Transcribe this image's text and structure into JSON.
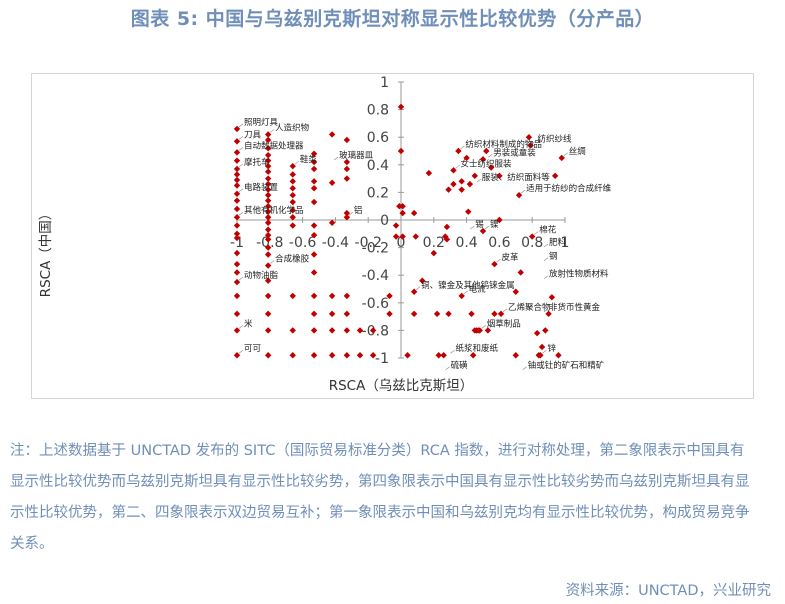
{
  "title": "图表 5:    中国与乌兹别克斯坦对称显示性比较优势（分产品）",
  "note": "注：上述数据基于 UNCTAD 发布的 SITC（国际贸易标准分类）RCA 指数，进行对称处理，第二象限表示中国具有显示性比较优势而乌兹别克斯坦具有显示性比较劣势，第四象限表示中国具有显示性比较劣势而乌兹别克斯坦具有显示性比较优势，第二、四象限表示双边贸易互补；第一象限表示中国和乌兹别克均有显示性比较优势，构成贸易竞争关系。",
  "source": "资料来源：UNCTAD，兴业研究",
  "chart_data": {
    "type": "scatter",
    "xlabel": "RSCA（乌兹比克斯坦）",
    "ylabel": "RSCA（中国）",
    "xlim": [
      -1,
      1
    ],
    "ylim": [
      -1,
      1
    ],
    "grid": false,
    "marker_color": "#c00000",
    "x_ticks": [
      "-1",
      "-0.8",
      "-0.6",
      "-0.4",
      "-0.2",
      "0",
      "0.2",
      "0.4",
      "0.6",
      "0.8",
      "1"
    ],
    "y_ticks": [
      "1",
      "0.8",
      "0.6",
      "0.4",
      "0.2",
      "0",
      "-0.2",
      "-0.4",
      "-0.6",
      "-0.8",
      "-1"
    ],
    "points": [
      [
        -1,
        0.66
      ],
      [
        -1,
        0.57
      ],
      [
        -1,
        0.49
      ],
      [
        -1,
        0.43
      ],
      [
        -1,
        0.37
      ],
      [
        -1,
        0.33
      ],
      [
        -1,
        0.29
      ],
      [
        -1,
        0.25
      ],
      [
        -1,
        0.19
      ],
      [
        -1,
        0.14
      ],
      [
        -1,
        0.08
      ],
      [
        -1,
        0.02
      ],
      [
        -1,
        -0.04
      ],
      [
        -1,
        -0.1
      ],
      [
        -1,
        -0.13
      ],
      [
        -1,
        -0.24
      ],
      [
        -1,
        -0.32
      ],
      [
        -1,
        -0.38
      ],
      [
        -1,
        -0.45
      ],
      [
        -1,
        -0.55
      ],
      [
        -1,
        -0.68
      ],
      [
        -1,
        -0.8
      ],
      [
        -1,
        -0.98
      ],
      [
        -0.81,
        0.62
      ],
      [
        -0.81,
        0.58
      ],
      [
        -0.81,
        0.52
      ],
      [
        -0.81,
        0.47
      ],
      [
        -0.81,
        0.43
      ],
      [
        -0.81,
        0.39
      ],
      [
        -0.81,
        0.35
      ],
      [
        -0.81,
        0.3
      ],
      [
        -0.81,
        0.26
      ],
      [
        -0.81,
        0.22
      ],
      [
        -0.81,
        0.18
      ],
      [
        -0.81,
        0.14
      ],
      [
        -0.81,
        0.1
      ],
      [
        -0.81,
        0.06
      ],
      [
        -0.81,
        0.02
      ],
      [
        -0.81,
        -0.02
      ],
      [
        -0.81,
        -0.07
      ],
      [
        -0.81,
        -0.11
      ],
      [
        -0.81,
        -0.14
      ],
      [
        -0.81,
        -0.2
      ],
      [
        -0.81,
        -0.25
      ],
      [
        -0.81,
        -0.33
      ],
      [
        -0.81,
        -0.44
      ],
      [
        -0.81,
        -0.55
      ],
      [
        -0.81,
        -0.68
      ],
      [
        -0.81,
        -0.8
      ],
      [
        -0.81,
        -0.98
      ],
      [
        -0.66,
        0.39
      ],
      [
        -0.66,
        0.33
      ],
      [
        -0.66,
        0.28
      ],
      [
        -0.66,
        0.23
      ],
      [
        -0.66,
        0.18
      ],
      [
        -0.66,
        0.13
      ],
      [
        -0.66,
        0.07
      ],
      [
        -0.66,
        0.02
      ],
      [
        -0.66,
        -0.04
      ],
      [
        -0.66,
        -0.55
      ],
      [
        -0.66,
        -0.8
      ],
      [
        -0.66,
        -0.98
      ],
      [
        -0.53,
        0.48
      ],
      [
        -0.53,
        0.42
      ],
      [
        -0.53,
        0.37
      ],
      [
        -0.53,
        0.28
      ],
      [
        -0.53,
        0.23
      ],
      [
        -0.53,
        0.13
      ],
      [
        -0.53,
        -0.04
      ],
      [
        -0.53,
        -0.11
      ],
      [
        -0.53,
        -0.25
      ],
      [
        -0.53,
        -0.38
      ],
      [
        -0.53,
        -0.55
      ],
      [
        -0.53,
        -0.68
      ],
      [
        -0.53,
        -0.8
      ],
      [
        -0.53,
        -0.98
      ],
      [
        -0.42,
        0.62
      ],
      [
        -0.42,
        0.27
      ],
      [
        -0.42,
        -0.02
      ],
      [
        -0.42,
        -0.55
      ],
      [
        -0.42,
        -0.68
      ],
      [
        -0.42,
        -0.8
      ],
      [
        -0.42,
        -0.98
      ],
      [
        -0.33,
        0.58
      ],
      [
        -0.33,
        0.42
      ],
      [
        -0.33,
        0.37
      ],
      [
        -0.33,
        0.3
      ],
      [
        -0.33,
        0.05
      ],
      [
        -0.33,
        0.02
      ],
      [
        -0.33,
        -0.55
      ],
      [
        -0.33,
        -0.68
      ],
      [
        -0.33,
        -0.8
      ],
      [
        -0.33,
        -0.98
      ],
      [
        -0.25,
        -0.8
      ],
      [
        -0.25,
        -0.98
      ],
      [
        -0.17,
        -0.8
      ],
      [
        -0.17,
        -0.98
      ],
      [
        -0.07,
        -0.55
      ],
      [
        -0.07,
        -0.68
      ],
      [
        -0.03,
        -0.04
      ],
      [
        -0.03,
        -0.12
      ],
      [
        -0.01,
        0.1
      ],
      [
        0.0,
        0.82
      ],
      [
        0.0,
        0.5
      ],
      [
        0.01,
        0.1
      ],
      [
        0.01,
        0.05
      ],
      [
        0.01,
        -0.12
      ],
      [
        0.04,
        -0.98
      ],
      [
        0.08,
        -0.52
      ],
      [
        0.08,
        -0.68
      ],
      [
        0.08,
        0.05
      ],
      [
        0.09,
        -0.12
      ],
      [
        0.13,
        -0.44
      ],
      [
        0.17,
        0.34
      ],
      [
        0.2,
        -0.24
      ],
      [
        0.22,
        -0.68
      ],
      [
        0.23,
        -0.98
      ],
      [
        0.26,
        -0.98
      ],
      [
        0.27,
        -0.12
      ],
      [
        0.28,
        -0.05
      ],
      [
        0.28,
        -0.14
      ],
      [
        0.29,
        0.22
      ],
      [
        0.29,
        -0.68
      ],
      [
        0.32,
        0.36
      ],
      [
        0.32,
        0.26
      ],
      [
        0.35,
        0.5
      ],
      [
        0.37,
        0.28
      ],
      [
        0.37,
        0.22
      ],
      [
        0.37,
        -0.55
      ],
      [
        0.4,
        0.45
      ],
      [
        0.41,
        0.06
      ],
      [
        0.42,
        0.26
      ],
      [
        0.43,
        -0.68
      ],
      [
        0.44,
        -0.98
      ],
      [
        0.45,
        0.32
      ],
      [
        0.45,
        -0.8
      ],
      [
        0.46,
        -0.8
      ],
      [
        0.47,
        -0.8
      ],
      [
        0.48,
        -0.8
      ],
      [
        0.5,
        0.44
      ],
      [
        0.5,
        -0.08
      ],
      [
        0.52,
        0.5
      ],
      [
        0.53,
        -0.8
      ],
      [
        0.55,
        0.38
      ],
      [
        0.57,
        -0.32
      ],
      [
        0.57,
        -0.68
      ],
      [
        0.6,
        0.0
      ],
      [
        0.6,
        0.32
      ],
      [
        0.61,
        -0.68
      ],
      [
        0.7,
        -0.52
      ],
      [
        0.7,
        -0.98
      ],
      [
        0.72,
        0.18
      ],
      [
        0.73,
        -0.38
      ],
      [
        0.78,
        0.6
      ],
      [
        0.79,
        0.54
      ],
      [
        0.8,
        -0.12
      ],
      [
        0.83,
        -0.82
      ],
      [
        0.84,
        -0.98
      ],
      [
        0.85,
        -0.98
      ],
      [
        0.86,
        -0.92
      ],
      [
        0.88,
        -0.8
      ],
      [
        0.9,
        -0.68
      ],
      [
        0.92,
        -0.56
      ],
      [
        0.94,
        0.32
      ],
      [
        0.96,
        -0.98
      ],
      [
        0.98,
        0.45
      ]
    ],
    "annotations": [
      {
        "text": "照明灯具",
        "x": -1,
        "y": 0.66
      },
      {
        "text": "刀具",
        "x": -1,
        "y": 0.57
      },
      {
        "text": "自动数据处理器",
        "x": -1,
        "y": 0.49
      },
      {
        "text": "摩托车",
        "x": -1,
        "y": 0.37
      },
      {
        "text": "电路装置",
        "x": -1,
        "y": 0.19
      },
      {
        "text": "其他有机化学品",
        "x": -1,
        "y": 0.02
      },
      {
        "text": "人造织物",
        "x": -0.81,
        "y": 0.62
      },
      {
        "text": "鞋类",
        "x": -0.66,
        "y": 0.39
      },
      {
        "text": "玻璃器皿",
        "x": -0.42,
        "y": 0.42
      },
      {
        "text": "铝",
        "x": -0.33,
        "y": 0.02
      },
      {
        "text": "合成橡胶",
        "x": -0.81,
        "y": -0.33
      },
      {
        "text": "动物油脂",
        "x": -1,
        "y": -0.45
      },
      {
        "text": "米",
        "x": -1,
        "y": -0.8
      },
      {
        "text": "可可",
        "x": -1,
        "y": -0.98
      },
      {
        "text": "纺织材料制成的物品",
        "x": 0.35,
        "y": 0.5
      },
      {
        "text": "女士纺织服装",
        "x": 0.32,
        "y": 0.36
      },
      {
        "text": "男装或童装",
        "x": 0.52,
        "y": 0.44
      },
      {
        "text": "服装、纺织面料等",
        "x": 0.45,
        "y": 0.26
      },
      {
        "text": "丝绸",
        "x": 0.98,
        "y": 0.45
      },
      {
        "text": "纺织纱线",
        "x": 0.79,
        "y": 0.54
      },
      {
        "text": "适用于纺纱的合成纤维",
        "x": 0.72,
        "y": 0.18
      },
      {
        "text": "镍",
        "x": 0.5,
        "y": -0.08
      },
      {
        "text": "锡",
        "x": 0.41,
        "y": -0.08
      },
      {
        "text": "棉花",
        "x": 0.8,
        "y": -0.12
      },
      {
        "text": "肥料",
        "x": 0.86,
        "y": -0.21
      },
      {
        "text": "钢",
        "x": 0.86,
        "y": -0.31
      },
      {
        "text": "皮革",
        "x": 0.57,
        "y": -0.32
      },
      {
        "text": "放射性物质材料",
        "x": 0.86,
        "y": -0.44
      },
      {
        "text": "铜、镍金及其他钨铼金属",
        "x": 0.08,
        "y": -0.52
      },
      {
        "text": "电流",
        "x": 0.37,
        "y": -0.55
      },
      {
        "text": "乙烯聚合物",
        "x": 0.61,
        "y": -0.68
      },
      {
        "text": "非货币性黄金",
        "x": 0.86,
        "y": -0.68
      },
      {
        "text": "烟草制品",
        "x": 0.48,
        "y": -0.8
      },
      {
        "text": "纸浆和废纸",
        "x": 0.29,
        "y": -0.98
      },
      {
        "text": "硫磺",
        "x": 0.26,
        "y": -1.1
      },
      {
        "text": "锌",
        "x": 0.85,
        "y": -0.98
      },
      {
        "text": "铀或钍的矿石和精矿",
        "x": 0.73,
        "y": -1.1
      }
    ]
  }
}
